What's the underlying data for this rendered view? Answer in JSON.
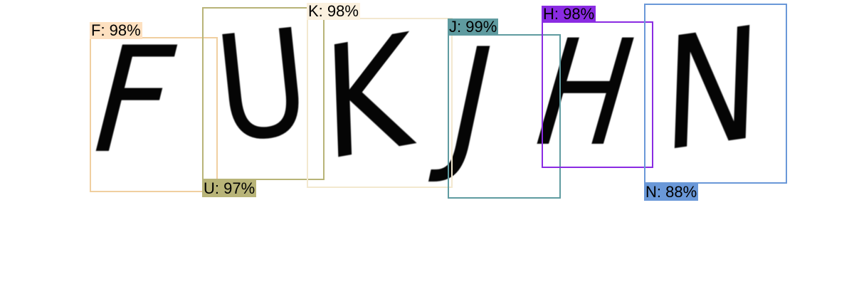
{
  "detections": [
    {
      "char": "F",
      "label": "F: 98%",
      "color": "#f0cfa0",
      "label_bg": "#fde0c0"
    },
    {
      "char": "U",
      "label": "U: 97%",
      "color": "#b8b478",
      "label_bg": "#b8b478"
    },
    {
      "char": "K",
      "label": "K: 98%",
      "color": "#f3e8cf",
      "label_bg": "#fbf1df"
    },
    {
      "char": "J",
      "label": "J: 99%",
      "color": "#5f9ba0",
      "label_bg": "#5f9ba0"
    },
    {
      "char": "H",
      "label": "H: 98%",
      "color": "#8a2be2",
      "label_bg": "#8a2be2"
    },
    {
      "char": "N",
      "label": "N: 88%",
      "color": "#6a98d8",
      "label_bg": "#6a98d8"
    }
  ]
}
